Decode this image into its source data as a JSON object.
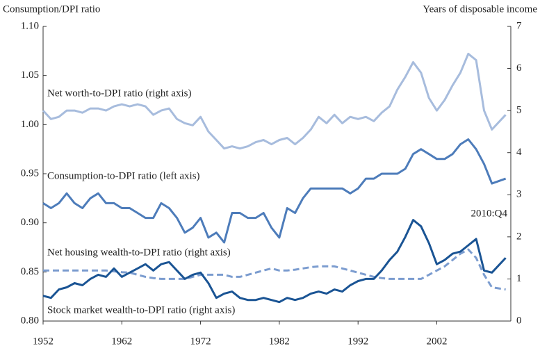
{
  "chart_data": {
    "type": "line",
    "y_label": "Consumption/DPI ratio",
    "y2_label": "Years of disposable income",
    "annotations": [
      "Net worth-to-DPI ratio (right axis)",
      "Consumption-to-DPI ratio (left axis)",
      "Net housing wealth-to-DPI ratio (right axis)",
      "Stock market wealth-to-DPI ratio (right axis)",
      "2010:Q4"
    ],
    "x": [
      1952,
      1953,
      1954,
      1955,
      1956,
      1957,
      1958,
      1959,
      1960,
      1961,
      1962,
      1963,
      1964,
      1965,
      1966,
      1967,
      1968,
      1969,
      1970,
      1971,
      1972,
      1973,
      1974,
      1975,
      1976,
      1977,
      1978,
      1979,
      1980,
      1981,
      1982,
      1983,
      1984,
      1985,
      1986,
      1987,
      1988,
      1989,
      1990,
      1991,
      1992,
      1993,
      1994,
      1995,
      1996,
      1997,
      1998,
      1999,
      2000,
      2001,
      2002,
      2003,
      2004,
      2005,
      2006,
      2007,
      2008,
      2009,
      2010.75
    ],
    "xlim": [
      1952,
      2011.4
    ],
    "xticks": [
      1952,
      1962,
      1972,
      1982,
      1992,
      2002
    ],
    "ylim": [
      0.8,
      1.1
    ],
    "yticks": [
      {
        "value": 0.8,
        "label": "0.80"
      },
      0.85,
      {
        "value": 0.9,
        "label": "0.90"
      },
      0.95,
      {
        "value": 1.0,
        "label": "1.00"
      },
      1.05,
      {
        "value": 1.1,
        "label": "1.10"
      }
    ],
    "y2lim": [
      0,
      7
    ],
    "y2ticks": [
      0,
      1,
      2,
      3,
      4,
      5,
      6,
      7
    ],
    "series": [
      {
        "name": "Net worth-to-DPI ratio",
        "color": "#a7bcdd",
        "axis": "y2",
        "dash": false,
        "values": [
          5.0,
          4.8,
          4.85,
          5.0,
          5.0,
          4.95,
          5.05,
          5.05,
          5.0,
          5.1,
          5.15,
          5.1,
          5.15,
          5.1,
          4.9,
          5.0,
          5.05,
          4.8,
          4.7,
          4.65,
          4.85,
          4.5,
          4.3,
          4.1,
          4.15,
          4.1,
          4.15,
          4.25,
          4.3,
          4.2,
          4.3,
          4.35,
          4.2,
          4.35,
          4.55,
          4.85,
          4.7,
          4.9,
          4.7,
          4.85,
          4.8,
          4.85,
          4.75,
          4.95,
          5.1,
          5.5,
          5.8,
          6.15,
          5.9,
          5.3,
          5.0,
          5.25,
          5.6,
          5.9,
          6.35,
          6.2,
          5.0,
          4.55,
          4.9
        ]
      },
      {
        "name": "Consumption-to-DPI ratio",
        "color": "#4d7cba",
        "dash": false,
        "values": [
          0.92,
          0.915,
          0.92,
          0.93,
          0.92,
          0.915,
          0.925,
          0.93,
          0.92,
          0.92,
          0.915,
          0.915,
          0.91,
          0.905,
          0.905,
          0.92,
          0.915,
          0.905,
          0.89,
          0.895,
          0.905,
          0.885,
          0.89,
          0.88,
          0.91,
          0.91,
          0.905,
          0.905,
          0.91,
          0.895,
          0.885,
          0.915,
          0.91,
          0.925,
          0.935,
          0.935,
          0.935,
          0.935,
          0.935,
          0.93,
          0.935,
          0.945,
          0.945,
          0.95,
          0.95,
          0.95,
          0.955,
          0.97,
          0.975,
          0.97,
          0.965,
          0.965,
          0.97,
          0.98,
          0.985,
          0.975,
          0.96,
          0.94,
          0.945
        ]
      },
      {
        "name": "Net housing wealth-to-DPI ratio",
        "color": "#7b9ccf",
        "axis": "y2",
        "dash": true,
        "values": [
          1.2,
          1.2,
          1.2,
          1.2,
          1.2,
          1.2,
          1.2,
          1.2,
          1.2,
          1.18,
          1.16,
          1.15,
          1.1,
          1.05,
          1.02,
          1.0,
          1.0,
          1.0,
          1.0,
          1.05,
          1.1,
          1.1,
          1.1,
          1.1,
          1.05,
          1.05,
          1.1,
          1.15,
          1.2,
          1.25,
          1.2,
          1.2,
          1.22,
          1.25,
          1.28,
          1.3,
          1.3,
          1.3,
          1.25,
          1.2,
          1.15,
          1.1,
          1.05,
          1.02,
          1.0,
          1.0,
          1.0,
          1.0,
          1.0,
          1.1,
          1.2,
          1.3,
          1.45,
          1.6,
          1.7,
          1.5,
          1.1,
          0.8,
          0.75
        ]
      },
      {
        "name": "Stock market wealth-to-DPI ratio",
        "color": "#1a5494",
        "axis": "y2",
        "dash": false,
        "values": [
          0.6,
          0.55,
          0.75,
          0.8,
          0.9,
          0.85,
          1.0,
          1.1,
          1.05,
          1.25,
          1.05,
          1.15,
          1.25,
          1.35,
          1.2,
          1.35,
          1.4,
          1.2,
          1.0,
          1.1,
          1.15,
          0.9,
          0.55,
          0.65,
          0.7,
          0.55,
          0.5,
          0.5,
          0.55,
          0.5,
          0.45,
          0.55,
          0.5,
          0.55,
          0.65,
          0.7,
          0.65,
          0.75,
          0.7,
          0.85,
          0.95,
          1.0,
          1.0,
          1.2,
          1.45,
          1.65,
          2.0,
          2.4,
          2.25,
          1.85,
          1.35,
          1.45,
          1.6,
          1.65,
          1.8,
          1.95,
          1.2,
          1.15,
          1.5
        ]
      }
    ]
  }
}
